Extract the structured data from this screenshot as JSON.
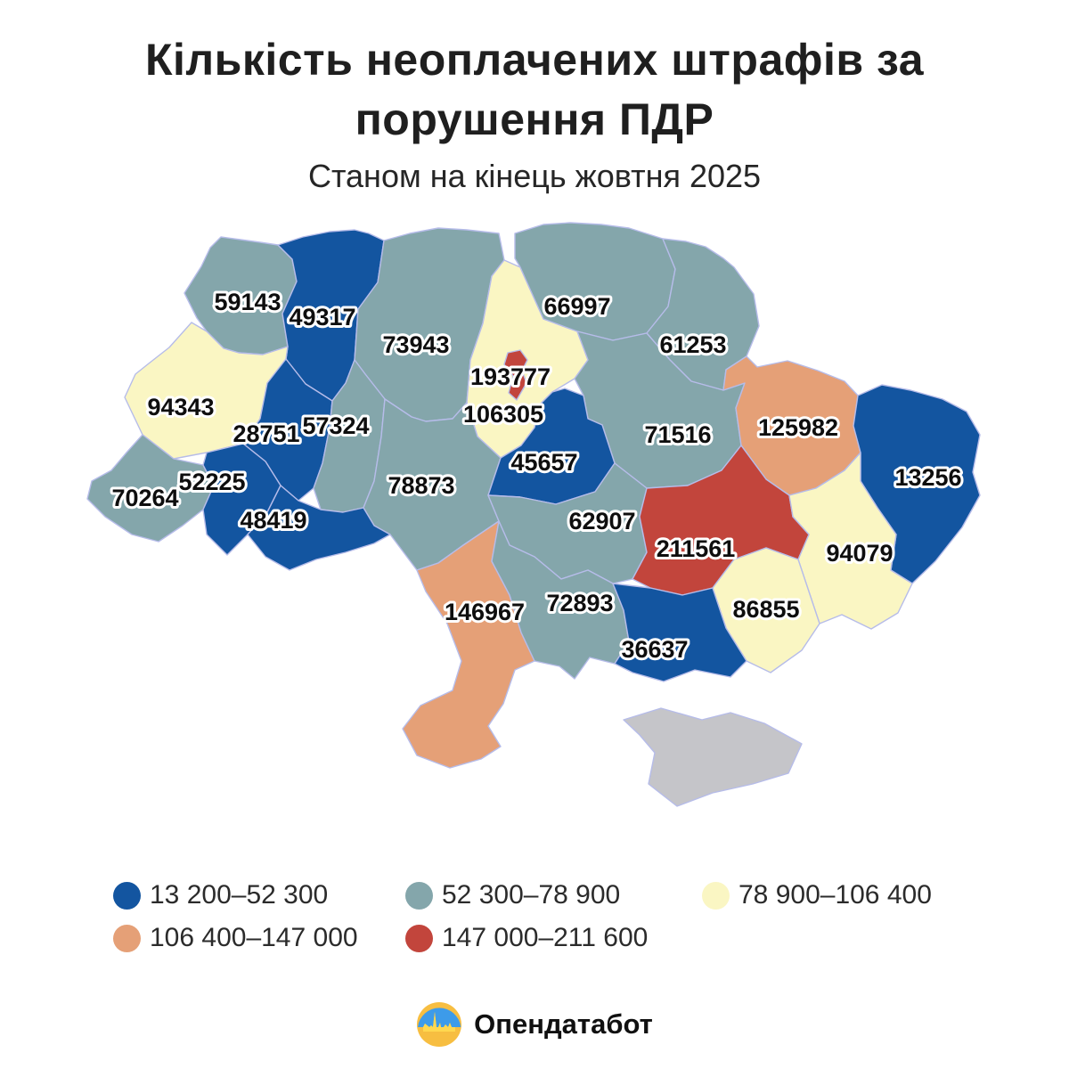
{
  "title": {
    "line1": "Кількість неоплачених штрафів за",
    "line2": "порушення ПДР",
    "subtitle": "Станом на кінець жовтня 2025"
  },
  "chart_data": {
    "type": "choropleth",
    "title": "Кількість неоплачених штрафів за порушення ПДР",
    "subtitle": "Станом на кінець жовтня 2025",
    "legend_position": "bottom",
    "border_color": "#B6BCE9",
    "no_data_color": "#C5C5C9",
    "label_style": {
      "fill": "#0E0E0E",
      "halo": "#FFFFFF"
    },
    "bins": [
      {
        "label": "13 200–52 300",
        "color": "#1355A0"
      },
      {
        "label": "52 300–78 900",
        "color": "#84A6AB"
      },
      {
        "label": "78 900–106 400",
        "color": "#FAF6C3"
      },
      {
        "label": "106 400–147 000",
        "color": "#E5A077"
      },
      {
        "label": "147 000–211 600",
        "color": "#C2453C"
      }
    ],
    "regions": [
      {
        "name": "volyn",
        "value": 59143,
        "bin": 1
      },
      {
        "name": "rivne",
        "value": 49317,
        "bin": 0
      },
      {
        "name": "zhytomyr",
        "value": 73943,
        "bin": 1
      },
      {
        "name": "kyiv-oblast",
        "value": 106305,
        "bin": 2
      },
      {
        "name": "chernihiv",
        "value": 66997,
        "bin": 1
      },
      {
        "name": "sumy",
        "value": 61253,
        "bin": 1
      },
      {
        "name": "poltava",
        "value": 71516,
        "bin": 1
      },
      {
        "name": "kharkiv",
        "value": 125982,
        "bin": 3
      },
      {
        "name": "luhansk",
        "value": 13256,
        "bin": 0
      },
      {
        "name": "lviv",
        "value": 94343,
        "bin": 2
      },
      {
        "name": "ternopil",
        "value": 28751,
        "bin": 0
      },
      {
        "name": "khmelnytskyi",
        "value": 57324,
        "bin": 1
      },
      {
        "name": "vinnytsia",
        "value": 78873,
        "bin": 1
      },
      {
        "name": "zakarpattia",
        "value": 70264,
        "bin": 1
      },
      {
        "name": "ivano-frankivsk",
        "value": 52225,
        "bin": 0
      },
      {
        "name": "chernivtsi",
        "value": 48419,
        "bin": 0
      },
      {
        "name": "cherkasy",
        "value": 45657,
        "bin": 0
      },
      {
        "name": "kirovohrad",
        "value": 62907,
        "bin": 1
      },
      {
        "name": "dnipro",
        "value": 211561,
        "bin": 4
      },
      {
        "name": "donetsk",
        "value": 94079,
        "bin": 2
      },
      {
        "name": "zaporizhzhia",
        "value": 86855,
        "bin": 2
      },
      {
        "name": "odesa",
        "value": 146967,
        "bin": 3
      },
      {
        "name": "mykolaiv",
        "value": 72893,
        "bin": 1
      },
      {
        "name": "kherson",
        "value": 36637,
        "bin": 0
      },
      {
        "name": "crimea",
        "value": null,
        "bin": null
      },
      {
        "name": "kyiv-city",
        "value": 193777,
        "bin": 4
      }
    ]
  },
  "footer": {
    "brand": "Опендатабот"
  }
}
